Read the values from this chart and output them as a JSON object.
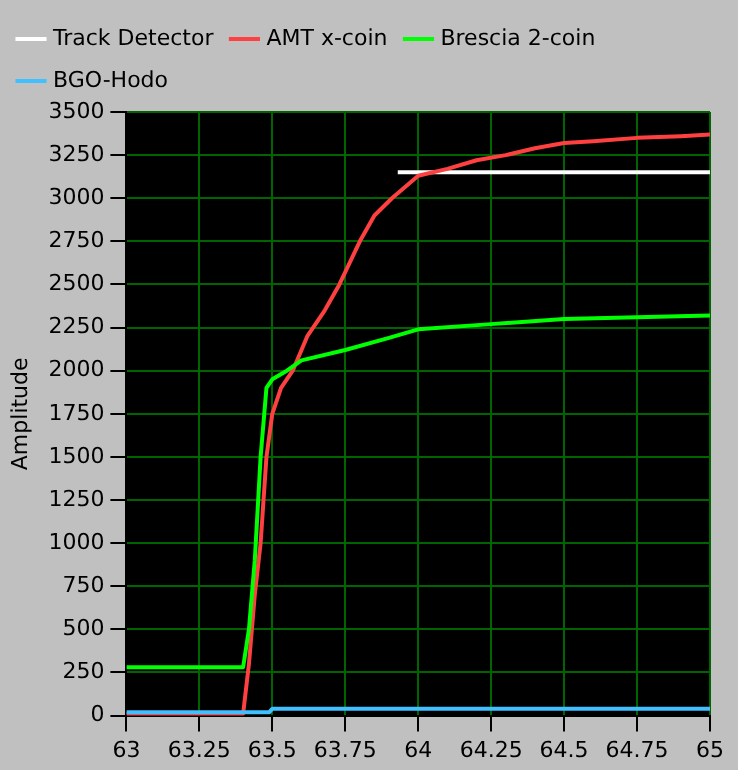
{
  "chart_data": {
    "type": "line",
    "ylabel": "Amplitude",
    "xlim": [
      63,
      65
    ],
    "xticks": [
      63,
      63.25,
      63.5,
      63.75,
      64,
      64.25,
      64.5,
      64.75,
      65
    ],
    "ylim": [
      0,
      3500
    ],
    "yticks": [
      0,
      250,
      500,
      750,
      1000,
      1250,
      1500,
      1750,
      2000,
      2250,
      2500,
      2750,
      3000,
      3250,
      3500
    ],
    "grid": true,
    "legend": "top left",
    "marker": "none",
    "line_style": "solid",
    "series": [
      {
        "name": "Track Detector",
        "color": "#ffffff",
        "x": [
          63.93,
          65
        ],
        "values": [
          3150,
          3150
        ]
      },
      {
        "name": "AMT x-coin",
        "color": "#ff4040",
        "x": [
          63,
          63.4,
          63.42,
          63.44,
          63.46,
          63.48,
          63.5,
          63.53,
          63.57,
          63.62,
          63.68,
          63.73,
          63.8,
          63.85,
          63.91,
          64,
          64.1,
          64.2,
          64.3,
          64.4,
          64.5,
          64.6,
          64.75,
          64.9,
          65
        ],
        "values": [
          10,
          10,
          300,
          700,
          1000,
          1500,
          1750,
          1900,
          2000,
          2200,
          2350,
          2500,
          2750,
          2900,
          3000,
          3130,
          3170,
          3220,
          3250,
          3290,
          3320,
          3330,
          3350,
          3360,
          3370
        ]
      },
      {
        "name": "Brescia 2-coin",
        "color": "#00ff00",
        "x": [
          63,
          63.4,
          63.42,
          63.44,
          63.46,
          63.48,
          63.5,
          63.55,
          63.6,
          63.75,
          63.9,
          64,
          64.25,
          64.5,
          64.75,
          65
        ],
        "values": [
          280,
          280,
          500,
          900,
          1500,
          1900,
          1950,
          2000,
          2060,
          2120,
          2190,
          2240,
          2270,
          2300,
          2310,
          2320
        ]
      },
      {
        "name": "BGO-Hodo",
        "color": "#40c0ff",
        "x": [
          63,
          63.49,
          63.5,
          65
        ],
        "values": [
          20,
          20,
          40,
          40
        ]
      }
    ]
  }
}
